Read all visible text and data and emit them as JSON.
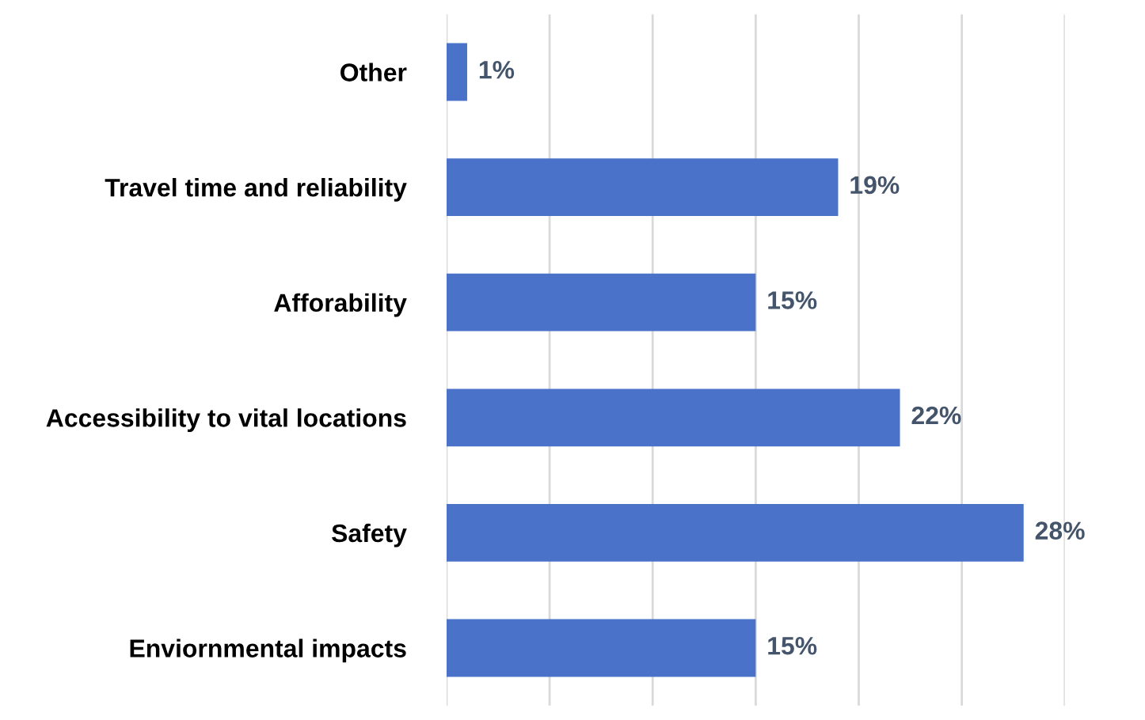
{
  "chart_data": {
    "type": "bar",
    "orientation": "horizontal",
    "categories": [
      "Other",
      "Travel time and reliability",
      "Afforability",
      "Accessibility to vital locations",
      "Safety",
      "Enviornmental impacts"
    ],
    "values": [
      1,
      19,
      15,
      22,
      28,
      15
    ],
    "value_labels": [
      "1%",
      "19%",
      "15%",
      "22%",
      "28%",
      "15%"
    ],
    "color": "#4a72c8",
    "xlim": [
      0,
      30
    ],
    "xticks": [
      {
        "value": 0,
        "label": null
      },
      {
        "value": 5,
        "label": null
      },
      {
        "value": 10,
        "label": null
      },
      {
        "value": 15,
        "label": null
      },
      {
        "value": 20,
        "label": null
      },
      {
        "value": 25,
        "label": null
      },
      {
        "value": 30,
        "label": null
      }
    ],
    "grid": "x"
  }
}
